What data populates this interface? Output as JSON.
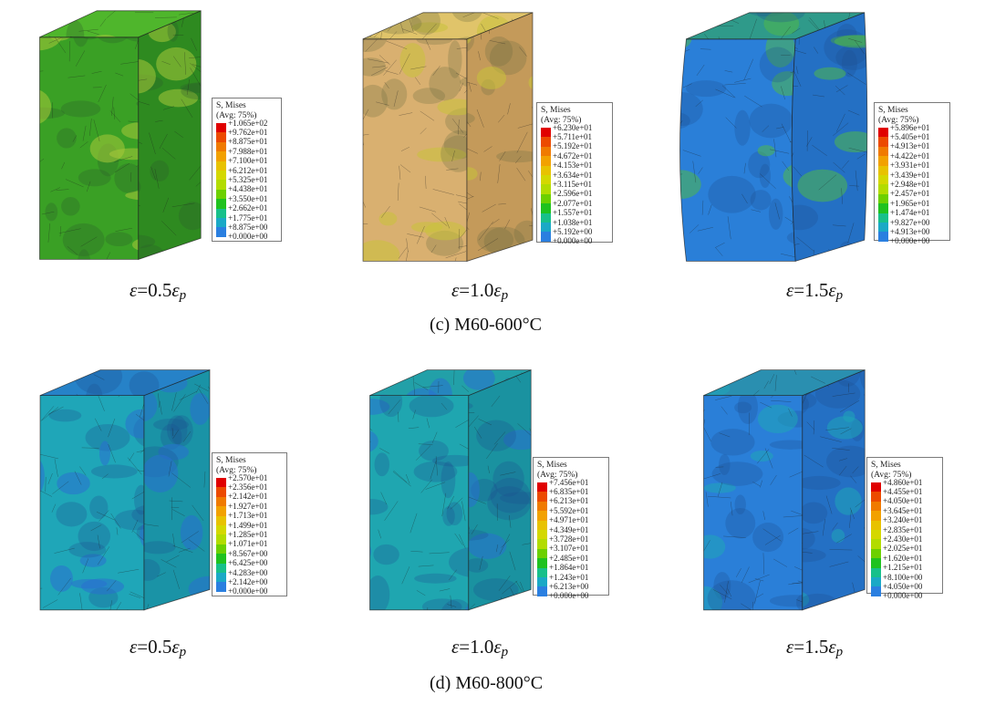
{
  "legend_swatch_colors": [
    "#e00000",
    "#ec4a00",
    "#f07a00",
    "#f2a100",
    "#e8c200",
    "#d4d800",
    "#b2dc00",
    "#6cd000",
    "#1fc21f",
    "#17c08a",
    "#1aa9c6",
    "#2a7fe0"
  ],
  "rows": [
    {
      "group_label": "(c) M60-600°C",
      "panels": [
        {
          "caption": {
            "symbol": "ε",
            "equals": "=0.5",
            "sub_symbol": "ε",
            "sub": "p"
          },
          "legend": {
            "title1": "S, Mises",
            "title2": "(Avg: 75%)",
            "values": [
              "+1.065e+02",
              "+9.762e+01",
              "+8.875e+01",
              "+7.988e+01",
              "+7.100e+01",
              "+6.212e+01",
              "+5.325e+01",
              "+4.438e+01",
              "+3.550e+01",
              "+2.662e+01",
              "+1.775e+01",
              "+8.875e+00",
              "+0.000e+00"
            ]
          },
          "cube_colors": {
            "front": "#3aa025",
            "side": "#2e8a20",
            "top": "#4fb62c",
            "blob": "#a8c93a",
            "dark": "#2a5a2a"
          }
        },
        {
          "caption": {
            "symbol": "ε",
            "equals": "=1.0",
            "sub_symbol": "ε",
            "sub": "p"
          },
          "legend": {
            "title1": "S, Mises",
            "title2": "(Avg: 75%)",
            "values": [
              "+6.230e+01",
              "+5.711e+01",
              "+5.192e+01",
              "+4.672e+01",
              "+4.153e+01",
              "+3.634e+01",
              "+3.115e+01",
              "+2.596e+01",
              "+2.077e+01",
              "+1.557e+01",
              "+1.038e+01",
              "+5.192e+00",
              "+0.000e+00"
            ]
          },
          "cube_colors": {
            "front": "#d9b070",
            "side": "#c49a5a",
            "top": "#e0c46a",
            "blob": "#c8c23a",
            "dark": "#6b6a40"
          }
        },
        {
          "caption": {
            "symbol": "ε",
            "equals": "=1.5",
            "sub_symbol": "ε",
            "sub": "p"
          },
          "legend": {
            "title1": "S, Mises",
            "title2": "(Avg: 75%)",
            "values": [
              "+5.896e+01",
              "+5.405e+01",
              "+4.913e+01",
              "+4.422e+01",
              "+3.931e+01",
              "+3.439e+01",
              "+2.948e+01",
              "+2.457e+01",
              "+1.965e+01",
              "+1.474e+01",
              "+9.827e+00",
              "+4.913e+00",
              "+0.000e+00"
            ]
          },
          "cube_colors": {
            "front": "#2a7fd8",
            "side": "#2470c4",
            "top": "#2f9a8a",
            "blob": "#4fb84a",
            "dark": "#1d4f8f"
          }
        }
      ]
    },
    {
      "group_label": "(d) M60-800°C",
      "panels": [
        {
          "caption": {
            "symbol": "ε",
            "equals": "=0.5",
            "sub_symbol": "ε",
            "sub": "p"
          },
          "legend": {
            "title1": "S, Mises",
            "title2": "(Avg: 75%)",
            "values": [
              "+2.570e+01",
              "+2.356e+01",
              "+2.142e+01",
              "+1.927e+01",
              "+1.713e+01",
              "+1.499e+01",
              "+1.285e+01",
              "+1.071e+01",
              "+8.567e+00",
              "+6.425e+00",
              "+4.283e+00",
              "+2.142e+00",
              "+0.000e+00"
            ]
          },
          "cube_colors": {
            "front": "#1fa6b8",
            "side": "#1a93a6",
            "top": "#2682c8",
            "blob": "#2a6fd0",
            "dark": "#1d4f8f"
          }
        },
        {
          "caption": {
            "symbol": "ε",
            "equals": "=1.0",
            "sub_symbol": "ε",
            "sub": "p"
          },
          "legend": {
            "title1": "S, Mises",
            "title2": "(Avg: 75%)",
            "values": [
              "+7.456e+01",
              "+6.835e+01",
              "+6.213e+01",
              "+5.592e+01",
              "+4.971e+01",
              "+4.349e+01",
              "+3.728e+01",
              "+3.107e+01",
              "+2.485e+01",
              "+1.864e+01",
              "+1.243e+01",
              "+6.213e+00",
              "+0.000e+00"
            ]
          },
          "cube_colors": {
            "front": "#1fa6b0",
            "side": "#1a92a0",
            "top": "#22a0a8",
            "blob": "#2a6fd0",
            "dark": "#1d4f8f"
          }
        },
        {
          "caption": {
            "symbol": "ε",
            "equals": "=1.5",
            "sub_symbol": "ε",
            "sub": "p"
          },
          "legend": {
            "title1": "S, Mises",
            "title2": "(Avg: 75%)",
            "values": [
              "+4.860e+01",
              "+4.455e+01",
              "+4.050e+01",
              "+3.645e+01",
              "+3.240e+01",
              "+2.835e+01",
              "+2.430e+01",
              "+2.025e+01",
              "+1.620e+01",
              "+1.215e+01",
              "+8.100e+00",
              "+4.050e+00",
              "+0.000e+00"
            ]
          },
          "cube_colors": {
            "front": "#2a7fd8",
            "side": "#2470c4",
            "top": "#2a8fb0",
            "blob": "#1fa6b8",
            "dark": "#1d4f8f"
          }
        }
      ]
    }
  ]
}
